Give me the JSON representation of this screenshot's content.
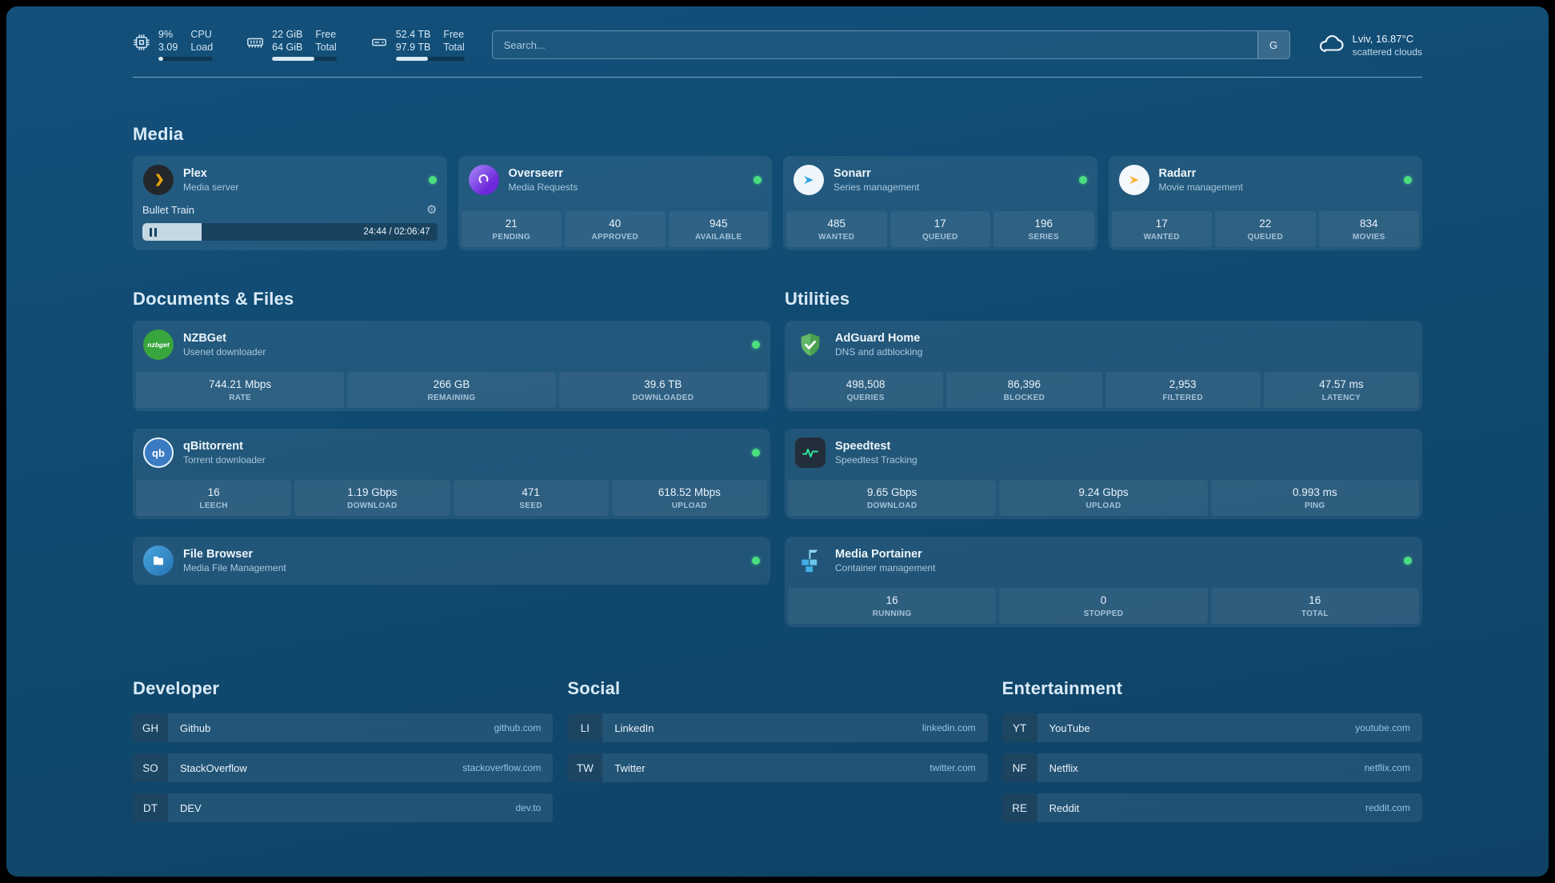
{
  "topbar": {
    "resources": [
      {
        "value1": "9%",
        "label1": "CPU",
        "value2": "3.09",
        "label2": "Load",
        "progress": 9
      },
      {
        "value1": "22 GiB",
        "label1": "Free",
        "value2": "64 GiB",
        "label2": "Total",
        "progress": 66
      },
      {
        "value1": "52.4 TB",
        "label1": "Free",
        "value2": "97.9 TB",
        "label2": "Total",
        "progress": 47
      }
    ],
    "search": {
      "placeholder": "Search...",
      "provider": "G"
    },
    "weather": {
      "location": "Lviv, 16.87°C",
      "condition": "scattered clouds"
    }
  },
  "media": {
    "title": "Media",
    "cards": [
      {
        "name": "Plex",
        "subtitle": "Media server",
        "status": "online",
        "player": {
          "title": "Bullet Train",
          "time": "24:44 / 02:06:47",
          "progress": 20
        }
      },
      {
        "name": "Overseerr",
        "subtitle": "Media Requests",
        "status": "online",
        "stats": [
          {
            "value": "21",
            "label": "PENDING"
          },
          {
            "value": "40",
            "label": "APPROVED"
          },
          {
            "value": "945",
            "label": "AVAILABLE"
          }
        ]
      },
      {
        "name": "Sonarr",
        "subtitle": "Series management",
        "status": "online",
        "stats": [
          {
            "value": "485",
            "label": "WANTED"
          },
          {
            "value": "17",
            "label": "QUEUED"
          },
          {
            "value": "196",
            "label": "SERIES"
          }
        ]
      },
      {
        "name": "Radarr",
        "subtitle": "Movie management",
        "status": "online",
        "stats": [
          {
            "value": "17",
            "label": "WANTED"
          },
          {
            "value": "22",
            "label": "QUEUED"
          },
          {
            "value": "834",
            "label": "MOVIES"
          }
        ]
      }
    ]
  },
  "documents": {
    "title": "Documents & Files",
    "cards": [
      {
        "name": "NZBGet",
        "subtitle": "Usenet downloader",
        "status": "online",
        "icon_text": "nzbget",
        "stats": [
          {
            "value": "744.21 Mbps",
            "label": "RATE"
          },
          {
            "value": "266 GB",
            "label": "REMAINING"
          },
          {
            "value": "39.6 TB",
            "label": "DOWNLOADED"
          }
        ]
      },
      {
        "name": "qBittorrent",
        "subtitle": "Torrent downloader",
        "status": "online",
        "icon_text": "qb",
        "stats": [
          {
            "value": "16",
            "label": "LEECH"
          },
          {
            "value": "1.19 Gbps",
            "label": "DOWNLOAD"
          },
          {
            "value": "471",
            "label": "SEED"
          },
          {
            "value": "618.52 Mbps",
            "label": "UPLOAD"
          }
        ]
      },
      {
        "name": "File Browser",
        "subtitle": "Media File Management",
        "status": "online"
      }
    ]
  },
  "utilities": {
    "title": "Utilities",
    "cards": [
      {
        "name": "AdGuard Home",
        "subtitle": "DNS and adblocking",
        "stats": [
          {
            "value": "498,508",
            "label": "QUERIES"
          },
          {
            "value": "86,396",
            "label": "BLOCKED"
          },
          {
            "value": "2,953",
            "label": "FILTERED"
          },
          {
            "value": "47.57 ms",
            "label": "LATENCY"
          }
        ]
      },
      {
        "name": "Speedtest",
        "subtitle": "Speedtest Tracking",
        "stats": [
          {
            "value": "9.65 Gbps",
            "label": "DOWNLOAD"
          },
          {
            "value": "9.24 Gbps",
            "label": "UPLOAD"
          },
          {
            "value": "0.993 ms",
            "label": "PING"
          }
        ]
      },
      {
        "name": "Media Portainer",
        "subtitle": "Container management",
        "status": "online",
        "stats": [
          {
            "value": "16",
            "label": "RUNNING"
          },
          {
            "value": "0",
            "label": "STOPPED"
          },
          {
            "value": "16",
            "label": "TOTAL"
          }
        ]
      }
    ]
  },
  "bookmarks": [
    {
      "title": "Developer",
      "links": [
        {
          "abbr": "GH",
          "name": "Github",
          "domain": "github.com"
        },
        {
          "abbr": "SO",
          "name": "StackOverflow",
          "domain": "stackoverflow.com"
        },
        {
          "abbr": "DT",
          "name": "DEV",
          "domain": "dev.to"
        }
      ]
    },
    {
      "title": "Social",
      "links": [
        {
          "abbr": "LI",
          "name": "LinkedIn",
          "domain": "linkedin.com"
        },
        {
          "abbr": "TW",
          "name": "Twitter",
          "domain": "twitter.com"
        }
      ]
    },
    {
      "title": "Entertainment",
      "links": [
        {
          "abbr": "YT",
          "name": "YouTube",
          "domain": "youtube.com"
        },
        {
          "abbr": "NF",
          "name": "Netflix",
          "domain": "netflix.com"
        },
        {
          "abbr": "RE",
          "name": "Reddit",
          "domain": "reddit.com"
        }
      ]
    }
  ],
  "icons": {
    "settings": "⚙"
  },
  "colors": {
    "status_online": "#4ade80",
    "plex_accent": "#e5a00d",
    "sonarr_accent": "#2aa3dd",
    "radarr_accent": "#f9b234",
    "adguard_green": "#59b259",
    "speedtest_pulse": "#2ee59d",
    "portainer_blue": "#41b0e0"
  }
}
